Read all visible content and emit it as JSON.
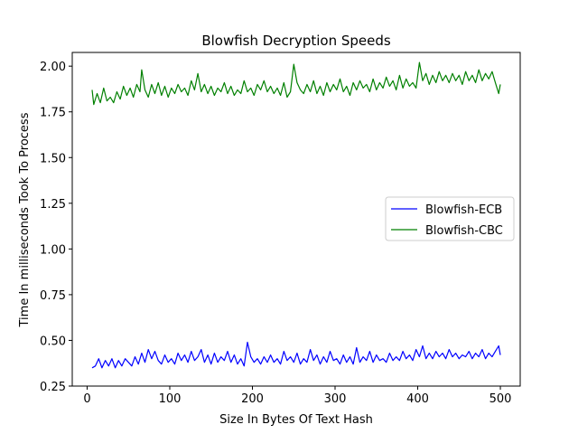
{
  "chart_data": {
    "type": "line",
    "title": "Blowfish Decryption Speeds",
    "xlabel": "Size In Bytes Of Text Hash",
    "ylabel": "Time In milliseconds Took To Process",
    "xlim": [
      -18,
      524
    ],
    "ylim": [
      0.25,
      2.075
    ],
    "xticks": [
      0,
      100,
      200,
      300,
      400,
      500
    ],
    "xtick_labels": [
      "0",
      "100",
      "200",
      "300",
      "400",
      "500"
    ],
    "yticks": [
      0.25,
      0.5,
      0.75,
      1.0,
      1.25,
      1.5,
      1.75,
      2.0
    ],
    "ytick_labels": [
      "0.25",
      "0.50",
      "0.75",
      "1.00",
      "1.25",
      "1.50",
      "1.75",
      "2.00"
    ],
    "grid": false,
    "legend_position": "center-right",
    "series": [
      {
        "name": "Blowfish-ECB",
        "color": "#0000ff",
        "points": [
          [
            6,
            0.35
          ],
          [
            10,
            0.36
          ],
          [
            14,
            0.4
          ],
          [
            18,
            0.35
          ],
          [
            22,
            0.39
          ],
          [
            26,
            0.36
          ],
          [
            30,
            0.4
          ],
          [
            34,
            0.35
          ],
          [
            38,
            0.39
          ],
          [
            42,
            0.36
          ],
          [
            46,
            0.4
          ],
          [
            50,
            0.38
          ],
          [
            54,
            0.36
          ],
          [
            58,
            0.41
          ],
          [
            62,
            0.37
          ],
          [
            66,
            0.43
          ],
          [
            70,
            0.38
          ],
          [
            74,
            0.45
          ],
          [
            78,
            0.4
          ],
          [
            82,
            0.44
          ],
          [
            86,
            0.39
          ],
          [
            90,
            0.37
          ],
          [
            94,
            0.42
          ],
          [
            98,
            0.38
          ],
          [
            102,
            0.4
          ],
          [
            106,
            0.37
          ],
          [
            110,
            0.43
          ],
          [
            114,
            0.39
          ],
          [
            118,
            0.42
          ],
          [
            122,
            0.38
          ],
          [
            126,
            0.44
          ],
          [
            130,
            0.39
          ],
          [
            134,
            0.41
          ],
          [
            138,
            0.45
          ],
          [
            142,
            0.38
          ],
          [
            146,
            0.42
          ],
          [
            150,
            0.37
          ],
          [
            154,
            0.43
          ],
          [
            158,
            0.38
          ],
          [
            162,
            0.41
          ],
          [
            166,
            0.39
          ],
          [
            170,
            0.44
          ],
          [
            174,
            0.38
          ],
          [
            178,
            0.42
          ],
          [
            182,
            0.37
          ],
          [
            186,
            0.4
          ],
          [
            190,
            0.36
          ],
          [
            194,
            0.49
          ],
          [
            198,
            0.41
          ],
          [
            202,
            0.38
          ],
          [
            206,
            0.4
          ],
          [
            210,
            0.37
          ],
          [
            214,
            0.41
          ],
          [
            218,
            0.38
          ],
          [
            222,
            0.42
          ],
          [
            226,
            0.38
          ],
          [
            230,
            0.4
          ],
          [
            234,
            0.37
          ],
          [
            238,
            0.44
          ],
          [
            242,
            0.39
          ],
          [
            246,
            0.41
          ],
          [
            250,
            0.38
          ],
          [
            254,
            0.43
          ],
          [
            258,
            0.37
          ],
          [
            262,
            0.4
          ],
          [
            266,
            0.38
          ],
          [
            270,
            0.45
          ],
          [
            274,
            0.39
          ],
          [
            278,
            0.42
          ],
          [
            282,
            0.37
          ],
          [
            286,
            0.41
          ],
          [
            290,
            0.38
          ],
          [
            294,
            0.44
          ],
          [
            298,
            0.39
          ],
          [
            302,
            0.4
          ],
          [
            306,
            0.37
          ],
          [
            310,
            0.42
          ],
          [
            314,
            0.38
          ],
          [
            318,
            0.41
          ],
          [
            322,
            0.37
          ],
          [
            326,
            0.46
          ],
          [
            330,
            0.38
          ],
          [
            334,
            0.41
          ],
          [
            338,
            0.39
          ],
          [
            342,
            0.44
          ],
          [
            346,
            0.38
          ],
          [
            350,
            0.42
          ],
          [
            354,
            0.39
          ],
          [
            358,
            0.4
          ],
          [
            362,
            0.38
          ],
          [
            366,
            0.43
          ],
          [
            370,
            0.39
          ],
          [
            374,
            0.41
          ],
          [
            378,
            0.39
          ],
          [
            382,
            0.44
          ],
          [
            386,
            0.4
          ],
          [
            390,
            0.42
          ],
          [
            394,
            0.39
          ],
          [
            398,
            0.45
          ],
          [
            402,
            0.41
          ],
          [
            406,
            0.47
          ],
          [
            410,
            0.4
          ],
          [
            414,
            0.43
          ],
          [
            418,
            0.4
          ],
          [
            422,
            0.44
          ],
          [
            426,
            0.41
          ],
          [
            430,
            0.43
          ],
          [
            434,
            0.4
          ],
          [
            438,
            0.45
          ],
          [
            442,
            0.41
          ],
          [
            446,
            0.43
          ],
          [
            450,
            0.4
          ],
          [
            454,
            0.42
          ],
          [
            458,
            0.41
          ],
          [
            462,
            0.44
          ],
          [
            466,
            0.4
          ],
          [
            470,
            0.43
          ],
          [
            474,
            0.41
          ],
          [
            478,
            0.45
          ],
          [
            482,
            0.4
          ],
          [
            486,
            0.43
          ],
          [
            490,
            0.41
          ],
          [
            494,
            0.44
          ],
          [
            498,
            0.47
          ],
          [
            500,
            0.42
          ]
        ]
      },
      {
        "name": "Blowfish-CBC",
        "color": "#008000",
        "points": [
          [
            6,
            1.87
          ],
          [
            8,
            1.79
          ],
          [
            12,
            1.85
          ],
          [
            16,
            1.8
          ],
          [
            20,
            1.88
          ],
          [
            24,
            1.81
          ],
          [
            28,
            1.83
          ],
          [
            32,
            1.8
          ],
          [
            36,
            1.86
          ],
          [
            40,
            1.82
          ],
          [
            44,
            1.89
          ],
          [
            48,
            1.84
          ],
          [
            52,
            1.88
          ],
          [
            56,
            1.83
          ],
          [
            60,
            1.9
          ],
          [
            64,
            1.86
          ],
          [
            66,
            1.98
          ],
          [
            70,
            1.87
          ],
          [
            74,
            1.83
          ],
          [
            78,
            1.9
          ],
          [
            82,
            1.85
          ],
          [
            86,
            1.91
          ],
          [
            90,
            1.84
          ],
          [
            94,
            1.89
          ],
          [
            98,
            1.83
          ],
          [
            102,
            1.88
          ],
          [
            106,
            1.85
          ],
          [
            110,
            1.9
          ],
          [
            114,
            1.86
          ],
          [
            118,
            1.88
          ],
          [
            122,
            1.84
          ],
          [
            126,
            1.92
          ],
          [
            130,
            1.87
          ],
          [
            134,
            1.96
          ],
          [
            138,
            1.86
          ],
          [
            142,
            1.9
          ],
          [
            146,
            1.85
          ],
          [
            150,
            1.89
          ],
          [
            154,
            1.84
          ],
          [
            158,
            1.88
          ],
          [
            162,
            1.86
          ],
          [
            166,
            1.91
          ],
          [
            170,
            1.85
          ],
          [
            174,
            1.89
          ],
          [
            178,
            1.84
          ],
          [
            182,
            1.87
          ],
          [
            186,
            1.85
          ],
          [
            190,
            1.92
          ],
          [
            194,
            1.86
          ],
          [
            198,
            1.88
          ],
          [
            202,
            1.84
          ],
          [
            206,
            1.9
          ],
          [
            210,
            1.87
          ],
          [
            214,
            1.92
          ],
          [
            218,
            1.86
          ],
          [
            222,
            1.89
          ],
          [
            226,
            1.85
          ],
          [
            230,
            1.88
          ],
          [
            234,
            1.84
          ],
          [
            238,
            1.91
          ],
          [
            242,
            1.83
          ],
          [
            246,
            1.86
          ],
          [
            250,
            2.01
          ],
          [
            254,
            1.91
          ],
          [
            258,
            1.87
          ],
          [
            262,
            1.85
          ],
          [
            266,
            1.9
          ],
          [
            270,
            1.86
          ],
          [
            274,
            1.92
          ],
          [
            278,
            1.85
          ],
          [
            282,
            1.89
          ],
          [
            286,
            1.84
          ],
          [
            290,
            1.91
          ],
          [
            294,
            1.86
          ],
          [
            298,
            1.9
          ],
          [
            302,
            1.87
          ],
          [
            306,
            1.93
          ],
          [
            310,
            1.86
          ],
          [
            314,
            1.89
          ],
          [
            318,
            1.84
          ],
          [
            322,
            1.91
          ],
          [
            326,
            1.87
          ],
          [
            330,
            1.92
          ],
          [
            334,
            1.88
          ],
          [
            338,
            1.9
          ],
          [
            342,
            1.86
          ],
          [
            346,
            1.93
          ],
          [
            350,
            1.87
          ],
          [
            354,
            1.91
          ],
          [
            358,
            1.88
          ],
          [
            362,
            1.94
          ],
          [
            366,
            1.89
          ],
          [
            370,
            1.92
          ],
          [
            374,
            1.87
          ],
          [
            378,
            1.95
          ],
          [
            382,
            1.88
          ],
          [
            386,
            1.93
          ],
          [
            390,
            1.89
          ],
          [
            394,
            1.91
          ],
          [
            398,
            1.88
          ],
          [
            402,
            2.02
          ],
          [
            406,
            1.92
          ],
          [
            410,
            1.96
          ],
          [
            414,
            1.9
          ],
          [
            418,
            1.95
          ],
          [
            422,
            1.91
          ],
          [
            426,
            1.97
          ],
          [
            430,
            1.92
          ],
          [
            434,
            1.95
          ],
          [
            438,
            1.91
          ],
          [
            442,
            1.96
          ],
          [
            446,
            1.92
          ],
          [
            450,
            1.95
          ],
          [
            454,
            1.9
          ],
          [
            458,
            1.97
          ],
          [
            462,
            1.92
          ],
          [
            466,
            1.95
          ],
          [
            470,
            1.91
          ],
          [
            474,
            1.98
          ],
          [
            478,
            1.92
          ],
          [
            482,
            1.96
          ],
          [
            486,
            1.93
          ],
          [
            490,
            1.97
          ],
          [
            494,
            1.91
          ],
          [
            498,
            1.85
          ],
          [
            500,
            1.9
          ]
        ]
      }
    ]
  }
}
